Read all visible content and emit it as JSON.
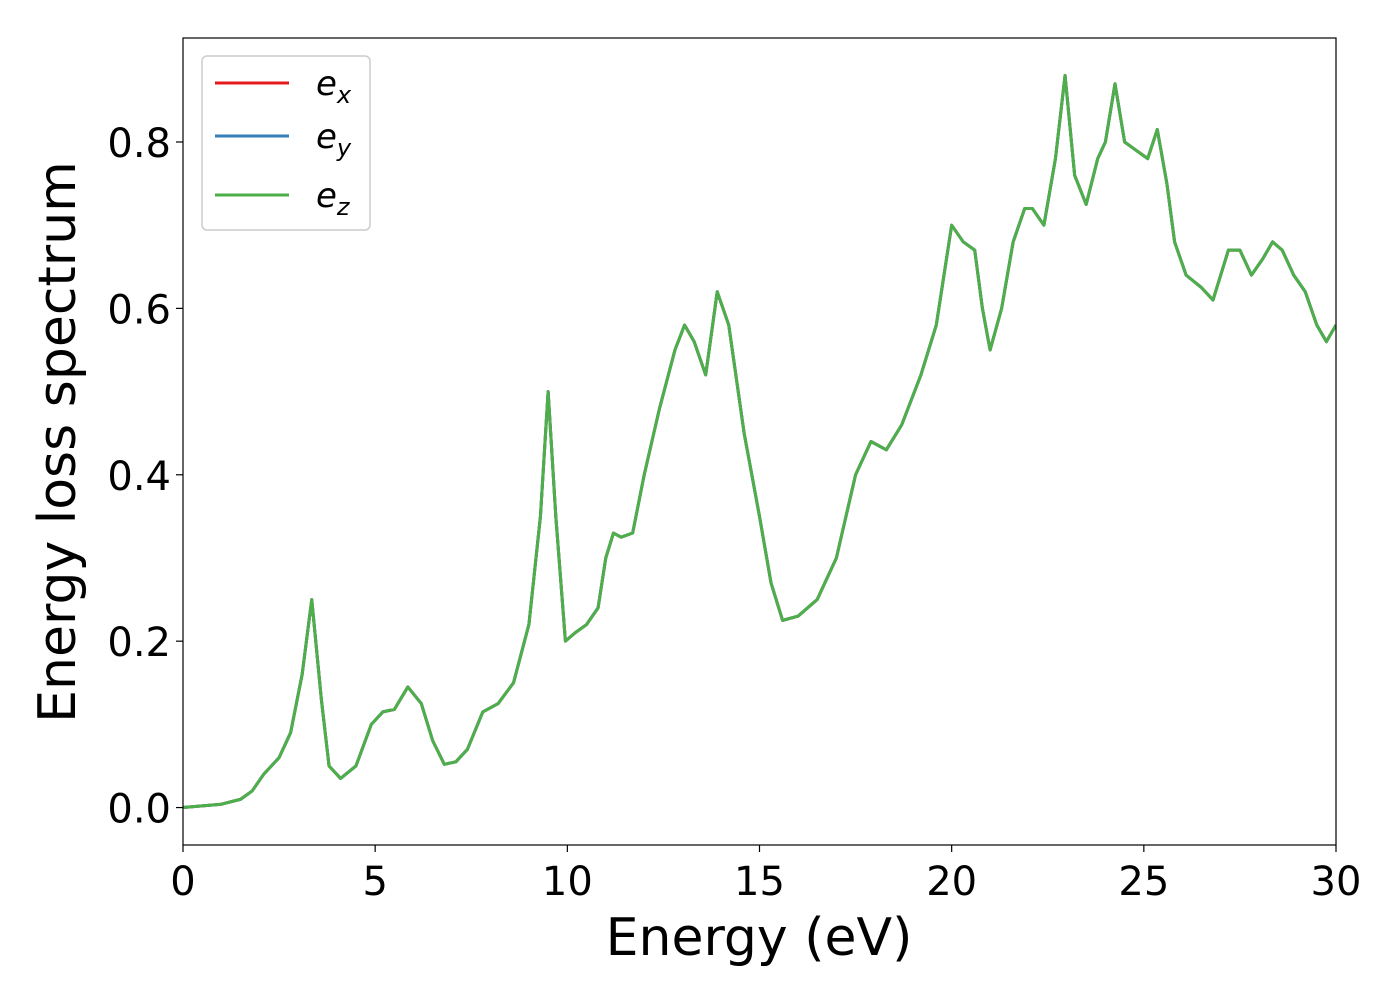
{
  "chart_data": {
    "type": "line",
    "title": "",
    "xlabel": "Energy (eV)",
    "ylabel": "Energy loss spectrum",
    "xlim": [
      0,
      30
    ],
    "ylim": [
      -0.045,
      0.925
    ],
    "xticks": [
      0,
      5,
      10,
      15,
      20,
      25,
      30
    ],
    "xtick_labels": [
      "0",
      "5",
      "10",
      "15",
      "20",
      "25",
      "30"
    ],
    "yticks": [
      0.0,
      0.2,
      0.4,
      0.6,
      0.8
    ],
    "ytick_labels": [
      "0.0",
      "0.2",
      "0.4",
      "0.6",
      "0.8"
    ],
    "grid": false,
    "legend_position": "top-left",
    "series": [
      {
        "name": "e_x",
        "label_main": "e",
        "label_sub": "x",
        "color": "#e41a1c"
      },
      {
        "name": "e_y",
        "label_main": "e",
        "label_sub": "y",
        "color": "#377eb8"
      },
      {
        "name": "e_z",
        "label_main": "e",
        "label_sub": "z",
        "color": "#4daf4a"
      }
    ],
    "note_series_identical": true,
    "x": [
      0,
      0.5,
      1.0,
      1.5,
      1.8,
      2.1,
      2.5,
      2.8,
      3.1,
      3.35,
      3.6,
      3.8,
      4.1,
      4.5,
      4.9,
      5.2,
      5.5,
      5.85,
      6.2,
      6.5,
      6.8,
      7.1,
      7.4,
      7.8,
      8.2,
      8.6,
      9.0,
      9.3,
      9.5,
      9.7,
      9.95,
      10.2,
      10.5,
      10.8,
      11.0,
      11.2,
      11.4,
      11.7,
      12.0,
      12.4,
      12.8,
      13.05,
      13.3,
      13.6,
      13.9,
      14.2,
      14.6,
      15.0,
      15.3,
      15.6,
      16.0,
      16.5,
      17.0,
      17.5,
      17.9,
      18.3,
      18.7,
      19.2,
      19.6,
      20.0,
      20.3,
      20.6,
      20.8,
      21.0,
      21.3,
      21.6,
      21.9,
      22.1,
      22.4,
      22.7,
      22.95,
      23.2,
      23.5,
      23.8,
      24.0,
      24.25,
      24.5,
      24.8,
      25.1,
      25.35,
      25.6,
      25.8,
      26.1,
      26.5,
      26.8,
      27.2,
      27.5,
      27.8,
      28.1,
      28.35,
      28.6,
      28.9,
      29.2,
      29.5,
      29.75,
      30.0
    ],
    "y": [
      0.0,
      0.002,
      0.004,
      0.01,
      0.02,
      0.04,
      0.06,
      0.09,
      0.16,
      0.25,
      0.13,
      0.05,
      0.035,
      0.05,
      0.1,
      0.115,
      0.118,
      0.145,
      0.125,
      0.08,
      0.052,
      0.055,
      0.07,
      0.115,
      0.125,
      0.15,
      0.22,
      0.35,
      0.5,
      0.35,
      0.2,
      0.21,
      0.22,
      0.24,
      0.3,
      0.33,
      0.325,
      0.33,
      0.4,
      0.48,
      0.55,
      0.58,
      0.56,
      0.52,
      0.62,
      0.58,
      0.45,
      0.35,
      0.27,
      0.225,
      0.23,
      0.25,
      0.3,
      0.4,
      0.44,
      0.43,
      0.46,
      0.52,
      0.58,
      0.7,
      0.68,
      0.67,
      0.6,
      0.55,
      0.6,
      0.68,
      0.72,
      0.72,
      0.7,
      0.78,
      0.88,
      0.76,
      0.725,
      0.78,
      0.8,
      0.87,
      0.8,
      0.79,
      0.78,
      0.815,
      0.75,
      0.68,
      0.64,
      0.625,
      0.61,
      0.67,
      0.67,
      0.64,
      0.66,
      0.68,
      0.67,
      0.64,
      0.62,
      0.58,
      0.56,
      0.58
    ]
  }
}
